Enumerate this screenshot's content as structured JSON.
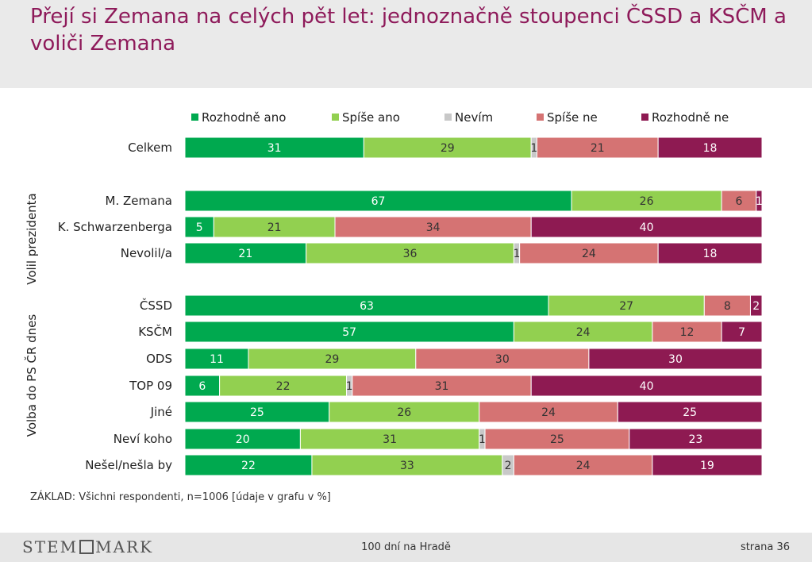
{
  "title": "Přejí si Zemana na celých pět let: jednoznačně stoupenci ČSSD a KSČM a voliči Zemana",
  "base_note": "ZÁKLAD: Všichni respondenti, n=1006 [údaje v grafu v %]",
  "footer": {
    "logo": "STEM",
    "logo_suffix": "MARK",
    "center": "100 dní na Hradě",
    "page": "strana 36"
  },
  "colors": {
    "Rozhodně ano": "#00a94f",
    "Spíše ano": "#92d050",
    "Nevím": "#c8c8c8",
    "Spíše ne": "#d57373",
    "Rozhodně ne": "#8e1a52"
  },
  "chart_data": {
    "type": "bar",
    "orientation": "horizontal",
    "stacked": true,
    "unit": "%",
    "legend_position": "top",
    "categories": [
      "Celkem",
      "M. Zemana",
      "K. Schwarzenberga",
      "Nevolil/a",
      "ČSSD",
      "KSČM",
      "ODS",
      "TOP 09",
      "Jiné",
      "Neví koho",
      "Nešel/nešla by"
    ],
    "groups": [
      {
        "label": "Volil prezidenta",
        "categories": [
          "M. Zemana",
          "K. Schwarzenberga",
          "Nevolil/a"
        ]
      },
      {
        "label": "Volba do PS ČR dnes",
        "categories": [
          "ČSSD",
          "KSČM",
          "ODS",
          "TOP 09",
          "Jiné",
          "Neví koho",
          "Nešel/nešla by"
        ]
      }
    ],
    "series": [
      {
        "name": "Rozhodně ano",
        "values": [
          31,
          67,
          5,
          21,
          63,
          57,
          11,
          6,
          25,
          20,
          22
        ]
      },
      {
        "name": "Spíše ano",
        "values": [
          29,
          26,
          21,
          36,
          27,
          24,
          29,
          22,
          26,
          31,
          33
        ]
      },
      {
        "name": "Nevím",
        "values": [
          1,
          0,
          0,
          1,
          0,
          0,
          0,
          1,
          0,
          1,
          2
        ]
      },
      {
        "name": "Spíše ne",
        "values": [
          21,
          6,
          34,
          24,
          8,
          12,
          30,
          31,
          24,
          25,
          24
        ]
      },
      {
        "name": "Rozhodně ne",
        "values": [
          18,
          1,
          40,
          18,
          2,
          7,
          30,
          40,
          25,
          23,
          19
        ]
      }
    ]
  }
}
